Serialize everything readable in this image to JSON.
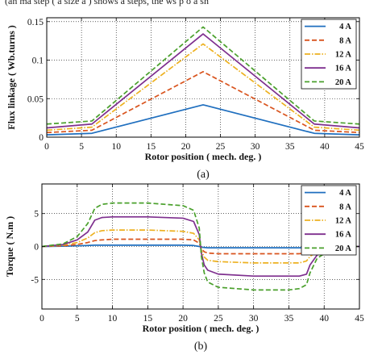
{
  "top_text": "(an ma  step ( a  size   a ) shows  a  steps, the   ws  p o  a  sh",
  "chart_data": [
    {
      "type": "line",
      "panel_label": "(a)",
      "xlabel": "Rotor position ( mech. deg. )",
      "ylabel": "Flux linkage ( Wb.turns )",
      "xlim": [
        0,
        45
      ],
      "ylim": [
        0,
        0.155
      ],
      "xticks": [
        0,
        5,
        10,
        15,
        20,
        25,
        30,
        35,
        40,
        45
      ],
      "xtick_labels": [
        "0",
        "5",
        "10",
        "15",
        "20",
        "25",
        "30",
        "35",
        "40",
        "45"
      ],
      "yticks": [
        0,
        0.05,
        0.1,
        0.15
      ],
      "ytick_labels": [
        "0",
        "0.05",
        "0.1",
        "0.15"
      ],
      "grid": true,
      "legend_position": "top-right",
      "x": [
        0,
        6.5,
        22.5,
        38.5,
        45
      ],
      "series": [
        {
          "name": "4 A",
          "color": "#1f6fbf",
          "dash": "solid",
          "values": [
            0.003,
            0.005,
            0.042,
            0.005,
            0.003
          ]
        },
        {
          "name": "8 A",
          "color": "#d9541e",
          "dash": "dashed",
          "values": [
            0.006,
            0.009,
            0.085,
            0.009,
            0.006
          ]
        },
        {
          "name": "12 A",
          "color": "#edb120",
          "dash": "dashdot",
          "values": [
            0.009,
            0.013,
            0.121,
            0.013,
            0.009
          ]
        },
        {
          "name": "16 A",
          "color": "#7e2f8e",
          "dash": "solid",
          "values": [
            0.012,
            0.017,
            0.134,
            0.017,
            0.012
          ]
        },
        {
          "name": "20 A",
          "color": "#4aa02c",
          "dash": "dashed",
          "values": [
            0.017,
            0.021,
            0.143,
            0.021,
            0.017
          ]
        }
      ]
    },
    {
      "type": "line",
      "panel_label": "(b)",
      "xlabel": "Rotor position ( mech. deg. )",
      "ylabel": "Torque ( N.m )",
      "xlim": [
        0,
        45
      ],
      "ylim": [
        -9.5,
        9.5
      ],
      "xticks": [
        0,
        5,
        10,
        15,
        20,
        25,
        30,
        35,
        40,
        45
      ],
      "xtick_labels": [
        "0",
        "5",
        "10",
        "15",
        "20",
        "25",
        "30",
        "35",
        "40",
        "45"
      ],
      "yticks": [
        -5,
        0,
        5
      ],
      "ytick_labels": [
        "-5",
        "0",
        "5"
      ],
      "grid": true,
      "legend_position": "top-right",
      "x": [
        0,
        3,
        5,
        6.5,
        7.5,
        8.5,
        10,
        15,
        20,
        21.5,
        22.3,
        22.6,
        23,
        23.5,
        25,
        30,
        35,
        36.5,
        37.5,
        38,
        39,
        41,
        43,
        45
      ],
      "series": [
        {
          "name": "4 A",
          "color": "#1f6fbf",
          "dash": "solid",
          "values": [
            0,
            0.05,
            0.1,
            0.15,
            0.2,
            0.2,
            0.2,
            0.2,
            0.2,
            0.15,
            0,
            -0.1,
            -0.15,
            -0.2,
            -0.2,
            -0.2,
            -0.2,
            -0.2,
            -0.15,
            -0.1,
            -0.05,
            0,
            0,
            0
          ]
        },
        {
          "name": "8 A",
          "color": "#d9541e",
          "dash": "dashed",
          "values": [
            0,
            0.1,
            0.3,
            0.6,
            0.9,
            1.0,
            1.1,
            1.1,
            1.1,
            1.0,
            0.5,
            -0.3,
            -0.8,
            -1.0,
            -1.1,
            -1.1,
            -1.1,
            -1.1,
            -0.9,
            -0.6,
            -0.3,
            -0.1,
            0,
            0
          ]
        },
        {
          "name": "12 A",
          "color": "#edb120",
          "dash": "dashdot",
          "values": [
            0,
            0.2,
            0.6,
            1.3,
            2.1,
            2.4,
            2.5,
            2.5,
            2.3,
            2.0,
            1.0,
            -0.6,
            -1.6,
            -2.1,
            -2.3,
            -2.5,
            -2.5,
            -2.5,
            -2.2,
            -1.5,
            -0.8,
            -0.2,
            0,
            0
          ]
        },
        {
          "name": "16 A",
          "color": "#7e2f8e",
          "dash": "solid",
          "values": [
            0,
            0.3,
            1.0,
            2.2,
            4.0,
            4.4,
            4.5,
            4.5,
            4.3,
            3.8,
            1.8,
            -1.0,
            -2.8,
            -3.6,
            -4.2,
            -4.5,
            -4.5,
            -4.5,
            -4.2,
            -2.8,
            -1.3,
            -0.3,
            0,
            0
          ]
        },
        {
          "name": "20 A",
          "color": "#4aa02c",
          "dash": "dashed",
          "values": [
            0,
            0.4,
            1.5,
            3.5,
            5.8,
            6.4,
            6.6,
            6.6,
            6.2,
            5.5,
            2.8,
            -1.5,
            -4.0,
            -5.4,
            -6.2,
            -6.6,
            -6.6,
            -6.4,
            -5.8,
            -4.0,
            -1.8,
            -0.4,
            0,
            0
          ]
        }
      ]
    }
  ]
}
